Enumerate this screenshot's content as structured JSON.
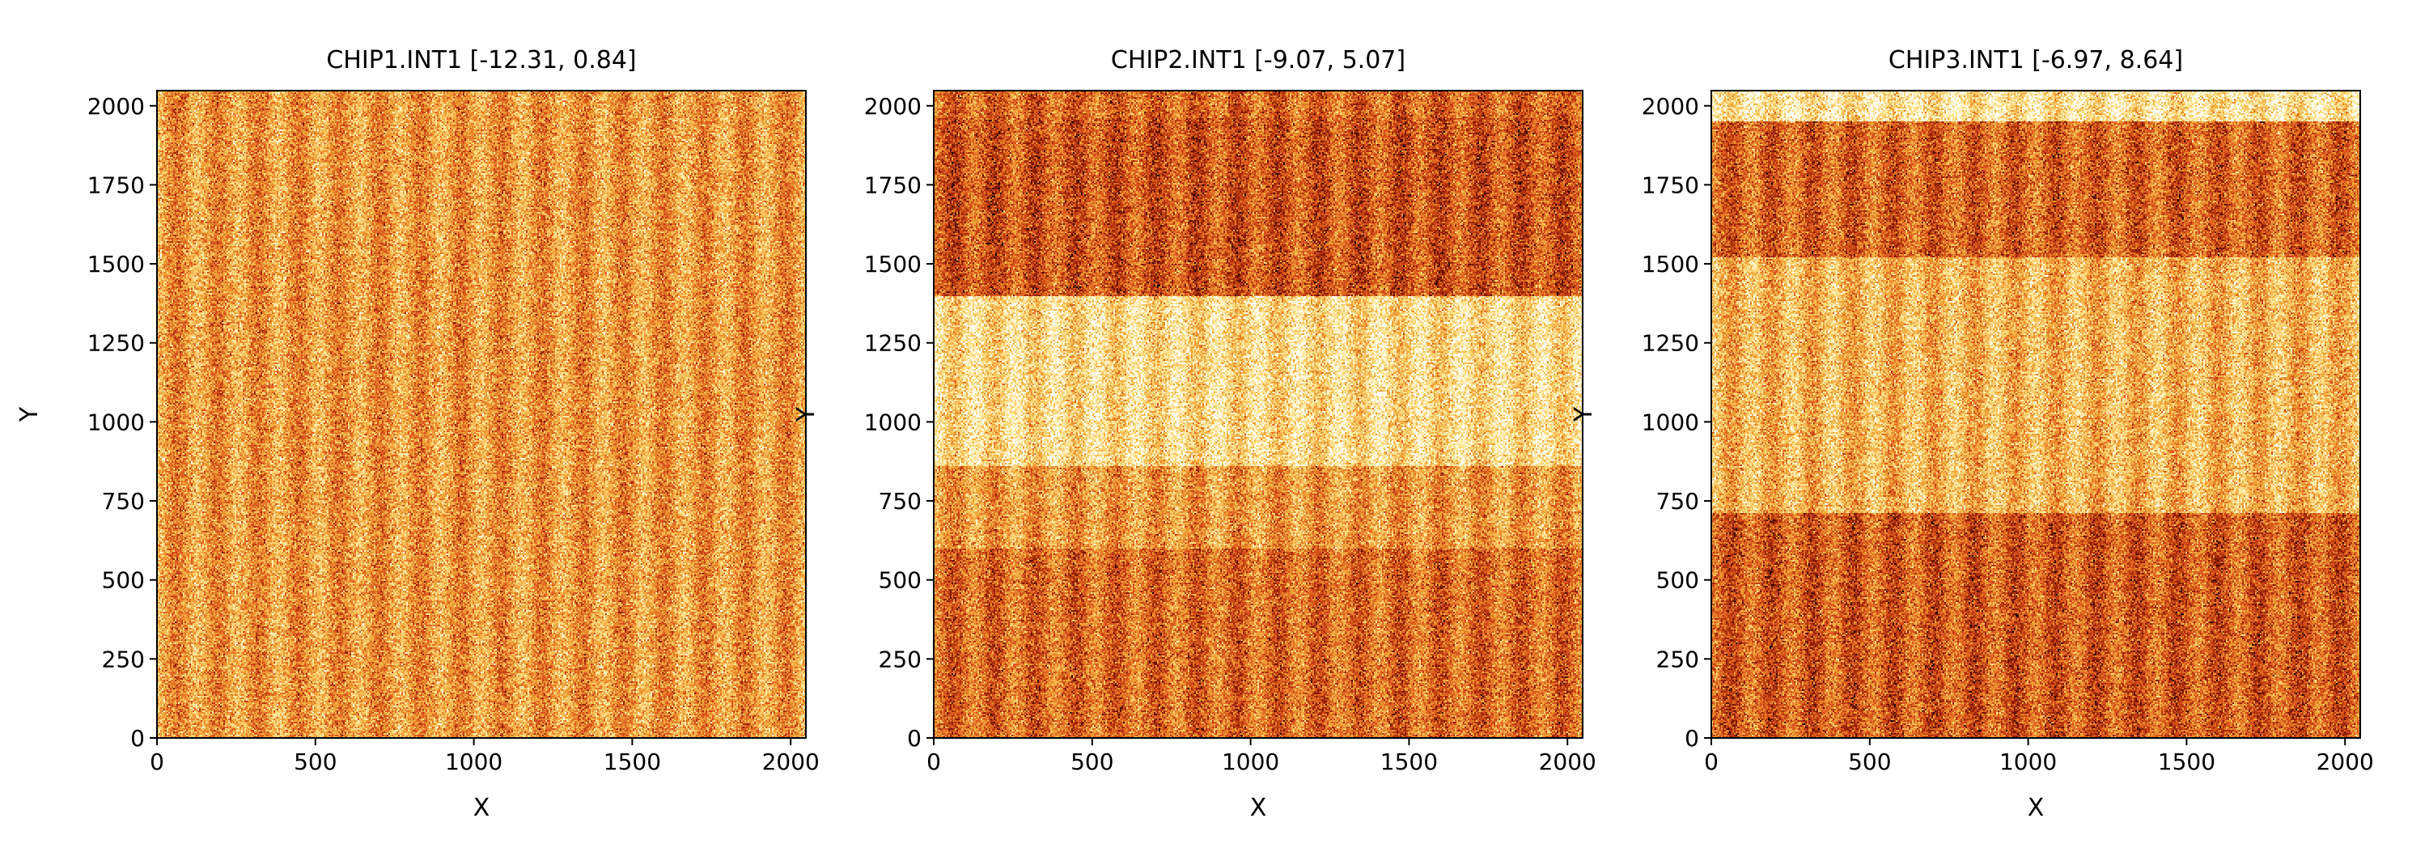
{
  "figure": {
    "colormap": [
      "#000000",
      "#8b1a00",
      "#d9531b",
      "#f0a438",
      "#ffe38a",
      "#ffffff"
    ]
  },
  "chart_data": [
    {
      "type": "heatmap",
      "title": "CHIP1.INT1 [-12.31, 0.84]",
      "xlabel": "X",
      "ylabel": "Y",
      "xlim": [
        0,
        2048
      ],
      "ylim": [
        0,
        2048
      ],
      "xticks": [
        0,
        500,
        1000,
        1500,
        2000
      ],
      "yticks": [
        0,
        250,
        500,
        750,
        1000,
        1250,
        1500,
        1750,
        2000
      ],
      "color_range": [
        -12.31,
        0.84
      ],
      "vertical_stripes": 16,
      "row_bands": [
        {
          "y": [
            0,
            2048
          ],
          "level": 0.58
        }
      ]
    },
    {
      "type": "heatmap",
      "title": "CHIP2.INT1 [-9.07, 5.07]",
      "xlabel": "X",
      "ylabel": "Y",
      "xlim": [
        0,
        2048
      ],
      "ylim": [
        0,
        2048
      ],
      "xticks": [
        0,
        500,
        1000,
        1500,
        2000
      ],
      "yticks": [
        0,
        250,
        500,
        750,
        1000,
        1250,
        1500,
        1750,
        2000
      ],
      "color_range": [
        -9.07,
        5.07
      ],
      "vertical_stripes": 16,
      "row_bands": [
        {
          "y": [
            0,
            600
          ],
          "level": 0.46
        },
        {
          "y": [
            600,
            860
          ],
          "level": 0.58
        },
        {
          "y": [
            860,
            1400
          ],
          "level": 0.78
        },
        {
          "y": [
            1400,
            1960
          ],
          "level": 0.4
        },
        {
          "y": [
            1960,
            2048
          ],
          "level": 0.45
        }
      ]
    },
    {
      "type": "heatmap",
      "title": "CHIP3.INT1 [-6.97, 8.64]",
      "xlabel": "X",
      "ylabel": "Y",
      "xlim": [
        0,
        2048
      ],
      "ylim": [
        0,
        2048
      ],
      "xticks": [
        0,
        500,
        1000,
        1500,
        2000
      ],
      "yticks": [
        0,
        250,
        500,
        750,
        1000,
        1250,
        1500,
        1750,
        2000
      ],
      "color_range": [
        -6.97,
        8.64
      ],
      "vertical_stripes": 16,
      "row_bands": [
        {
          "y": [
            0,
            710
          ],
          "level": 0.42
        },
        {
          "y": [
            710,
            1520
          ],
          "level": 0.66
        },
        {
          "y": [
            1520,
            1950
          ],
          "level": 0.44
        },
        {
          "y": [
            1950,
            2048
          ],
          "level": 0.82
        }
      ]
    }
  ]
}
